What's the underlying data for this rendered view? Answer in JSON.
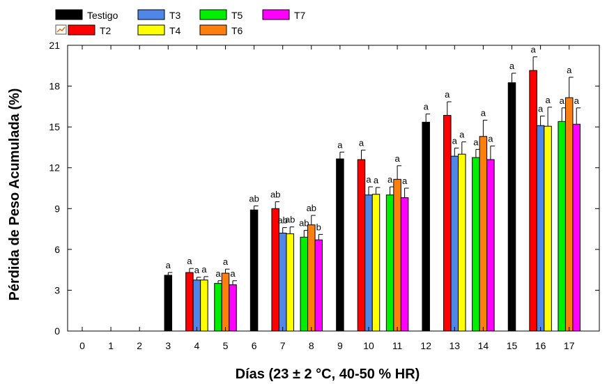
{
  "chart_data": {
    "type": "bar",
    "title": "",
    "xlabel": "Días (23 ± 2 °C, 40-50 % HR)",
    "ylabel": "Pérdida de Peso Acumulada (%)",
    "ylim": [
      0,
      21
    ],
    "yticks": [
      "0",
      "3",
      "6",
      "9",
      "12",
      "15",
      "18",
      "21"
    ],
    "categories": [
      "0",
      "1",
      "2",
      "3",
      "4",
      "5",
      "6",
      "7",
      "8",
      "9",
      "10",
      "11",
      "12",
      "13",
      "14",
      "15",
      "16",
      "17"
    ],
    "legend_position": "top-left",
    "grid": false,
    "series": [
      {
        "name": "Testigo",
        "color": "#000000",
        "values": [
          0,
          0,
          0,
          4.1,
          null,
          null,
          8.9,
          null,
          null,
          12.65,
          null,
          null,
          15.35,
          null,
          null,
          18.25,
          null,
          null
        ],
        "errors": [
          0,
          0,
          0,
          0.2,
          null,
          null,
          0.3,
          null,
          null,
          0.5,
          null,
          null,
          0.6,
          null,
          null,
          0.7,
          null,
          null
        ],
        "labels": [
          "",
          "",
          "",
          "a",
          "",
          "",
          "ab",
          "",
          "",
          "a",
          "",
          "",
          "a",
          "",
          "",
          "a",
          "",
          ""
        ]
      },
      {
        "name": "T2",
        "color": "#ff0000",
        "values": [
          null,
          null,
          null,
          null,
          4.3,
          null,
          null,
          9.0,
          null,
          null,
          12.6,
          null,
          null,
          15.85,
          null,
          null,
          19.15,
          null
        ],
        "errors": [
          null,
          null,
          null,
          null,
          0.3,
          null,
          null,
          0.5,
          null,
          null,
          0.7,
          null,
          null,
          1.0,
          null,
          null,
          1.0,
          null
        ],
        "labels": [
          "",
          "",
          "",
          "",
          "a",
          "",
          "",
          "ab",
          "",
          "",
          "a",
          "",
          "",
          "a",
          "",
          "",
          "a",
          ""
        ]
      },
      {
        "name": "T3",
        "color": "#4f86e8",
        "values": [
          null,
          null,
          null,
          null,
          3.75,
          null,
          null,
          7.2,
          null,
          null,
          10.0,
          null,
          null,
          12.85,
          null,
          null,
          15.1,
          null
        ],
        "errors": [
          null,
          null,
          null,
          null,
          0.2,
          null,
          null,
          0.4,
          null,
          null,
          0.6,
          null,
          null,
          0.6,
          null,
          null,
          0.7,
          null
        ],
        "labels": [
          "",
          "",
          "",
          "",
          "a",
          "",
          "",
          "ab",
          "",
          "",
          "a",
          "",
          "",
          "a",
          "",
          "",
          "a",
          ""
        ]
      },
      {
        "name": "T4",
        "color": "#ffff00",
        "values": [
          null,
          null,
          null,
          null,
          3.75,
          null,
          null,
          7.15,
          null,
          null,
          10.05,
          null,
          null,
          13.0,
          null,
          null,
          15.05,
          null
        ],
        "errors": [
          null,
          null,
          null,
          null,
          0.25,
          null,
          null,
          0.5,
          null,
          null,
          0.5,
          null,
          null,
          0.9,
          null,
          null,
          1.4,
          null
        ],
        "labels": [
          "",
          "",
          "",
          "",
          "a",
          "",
          "",
          "ab",
          "",
          "",
          "a",
          "",
          "",
          "a",
          "",
          "",
          "a",
          ""
        ]
      },
      {
        "name": "T5",
        "color": "#00ee00",
        "values": [
          null,
          null,
          null,
          null,
          null,
          3.5,
          null,
          null,
          6.9,
          null,
          null,
          10.0,
          null,
          null,
          12.75,
          null,
          null,
          15.4
        ],
        "errors": [
          null,
          null,
          null,
          null,
          null,
          0.2,
          null,
          null,
          0.5,
          null,
          null,
          0.6,
          null,
          null,
          0.6,
          null,
          null,
          1.0
        ],
        "labels": [
          "",
          "",
          "",
          "",
          "",
          "a",
          "",
          "",
          "ab",
          "",
          "",
          "a",
          "",
          "",
          "a",
          "",
          "",
          "a"
        ]
      },
      {
        "name": "T6",
        "color": "#ff7f0e",
        "values": [
          null,
          null,
          null,
          null,
          null,
          4.25,
          null,
          null,
          7.8,
          null,
          null,
          11.15,
          null,
          null,
          14.3,
          null,
          null,
          17.15
        ],
        "errors": [
          null,
          null,
          null,
          null,
          null,
          0.3,
          null,
          null,
          0.7,
          null,
          null,
          1.0,
          null,
          null,
          1.2,
          null,
          null,
          1.5
        ],
        "labels": [
          "",
          "",
          "",
          "",
          "",
          "a",
          "",
          "",
          "ab",
          "",
          "",
          "a",
          "",
          "",
          "a",
          "",
          "",
          "a"
        ]
      },
      {
        "name": "T7",
        "color": "#ff00ff",
        "values": [
          null,
          null,
          null,
          null,
          null,
          3.4,
          null,
          null,
          6.7,
          null,
          null,
          9.8,
          null,
          null,
          12.6,
          null,
          null,
          15.2
        ],
        "errors": [
          null,
          null,
          null,
          null,
          null,
          0.3,
          null,
          null,
          0.4,
          null,
          null,
          0.7,
          null,
          null,
          1.0,
          null,
          null,
          1.2
        ],
        "labels": [
          "",
          "",
          "",
          "",
          "",
          "a",
          "",
          "",
          "b",
          "",
          "",
          "a",
          "",
          "",
          "a",
          "",
          "",
          "a"
        ]
      }
    ]
  }
}
